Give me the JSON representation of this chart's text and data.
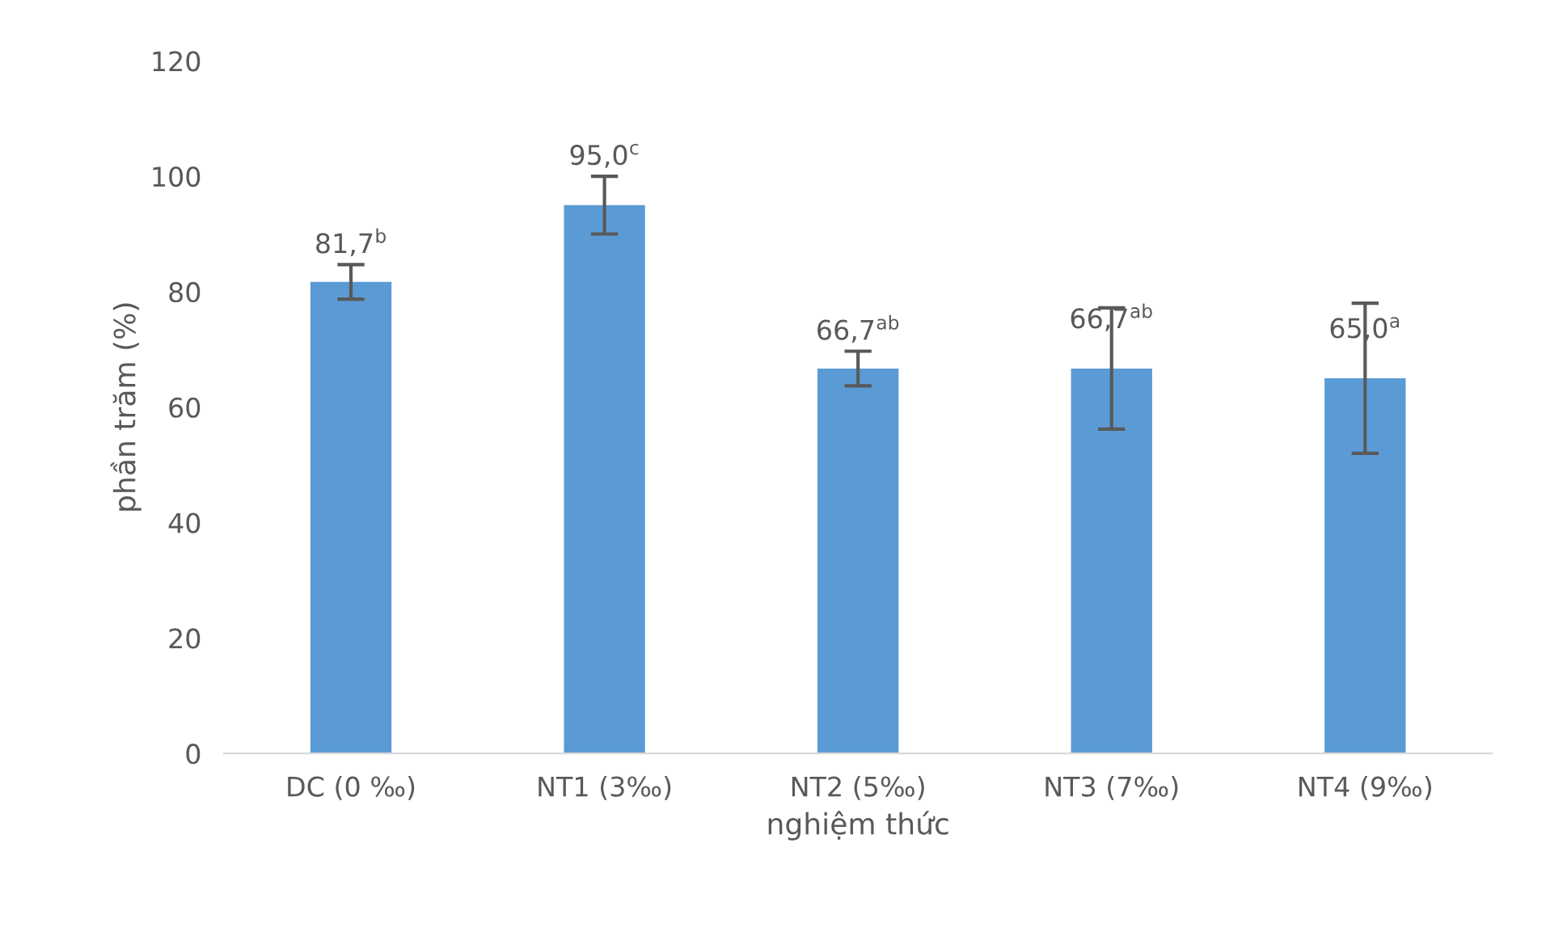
{
  "chart_data": {
    "type": "bar",
    "xlabel": "nghiệm thức",
    "ylabel": "phần trăm (%)",
    "categories": [
      "DC (0 ‰)",
      "NT1 (3‰)",
      "NT2 (5‰)",
      "NT3 (7‰)",
      "NT4 (9‰)"
    ],
    "values": [
      81.7,
      95.0,
      66.7,
      66.7,
      65.0
    ],
    "errors": [
      3,
      5,
      3,
      10.5,
      13
    ],
    "value_labels": [
      "81,7$^{b}$",
      "95,0$^{c}$",
      "66,7$^{ab}$",
      "66,7$^{ab}$",
      "65,0$^{a}$"
    ],
    "color": "#5b9bd5",
    "ylim": [
      0,
      120
    ],
    "yticks": [
      0,
      20,
      40,
      60,
      80,
      100,
      120
    ],
    "grid": false,
    "legend": false
  }
}
